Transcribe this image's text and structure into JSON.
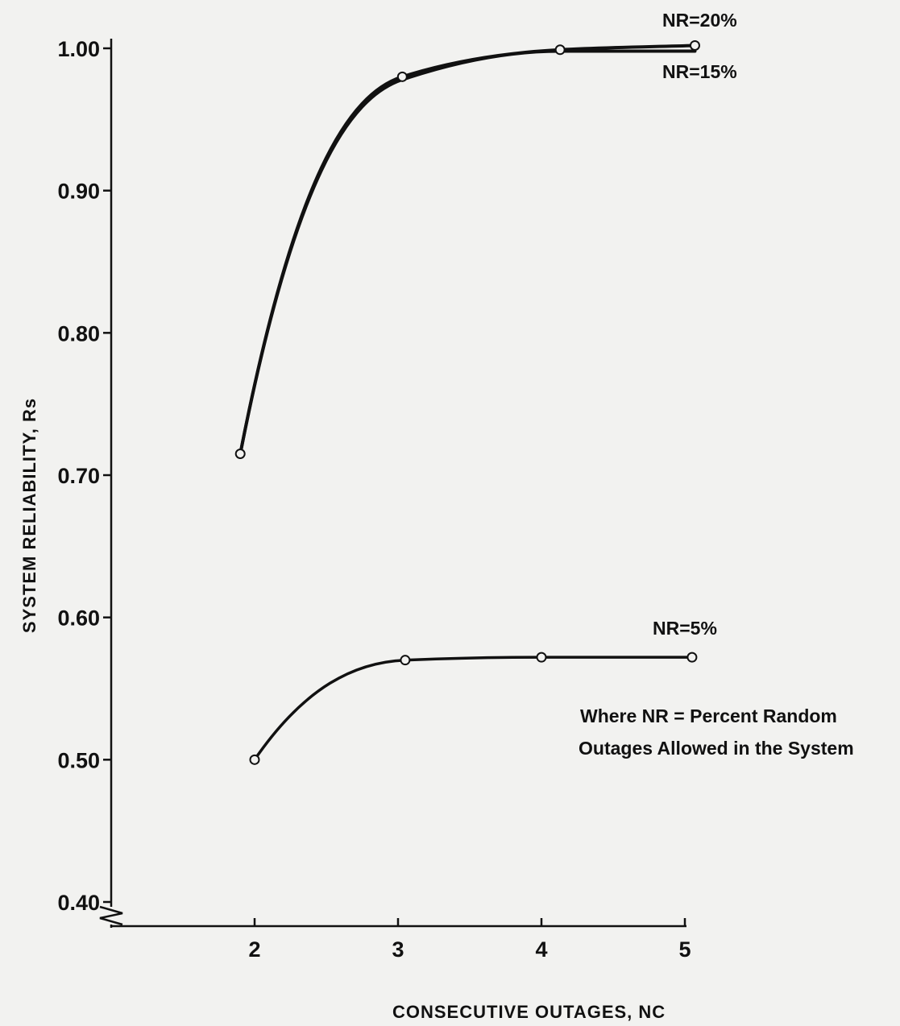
{
  "chart_data": {
    "type": "line",
    "xlabel": "CONSECUTIVE OUTAGES, NC",
    "ylabel": "SYSTEM RELIABILITY, Rs",
    "xlim": [
      1,
      5
    ],
    "ylim": [
      0.4,
      1.0
    ],
    "x_ticks": [
      "2",
      "3",
      "4",
      "5"
    ],
    "y_ticks": [
      "0.40",
      "0.50",
      "0.60",
      "0.70",
      "0.80",
      "0.90",
      "1.00"
    ],
    "grid": false,
    "series": [
      {
        "name": "NR=20%",
        "points": [
          [
            1.9,
            0.715
          ],
          [
            3.03,
            0.98
          ],
          [
            4.13,
            0.999
          ],
          [
            5.07,
            1.002
          ]
        ]
      },
      {
        "name": "NR=15%",
        "points": [
          [
            1.9,
            0.715
          ],
          [
            3.03,
            0.978
          ],
          [
            4.13,
            0.998
          ],
          [
            5.07,
            0.998
          ]
        ]
      },
      {
        "name": "NR=5%",
        "points": [
          [
            2.0,
            0.5
          ],
          [
            3.05,
            0.57
          ],
          [
            4.0,
            0.572
          ],
          [
            5.05,
            0.572
          ]
        ]
      }
    ],
    "annotation": [
      "Where NR = Percent Random",
      "Outages Allowed in the System"
    ]
  },
  "style": {
    "ink": "#111111",
    "background": "#f2f2f0"
  }
}
